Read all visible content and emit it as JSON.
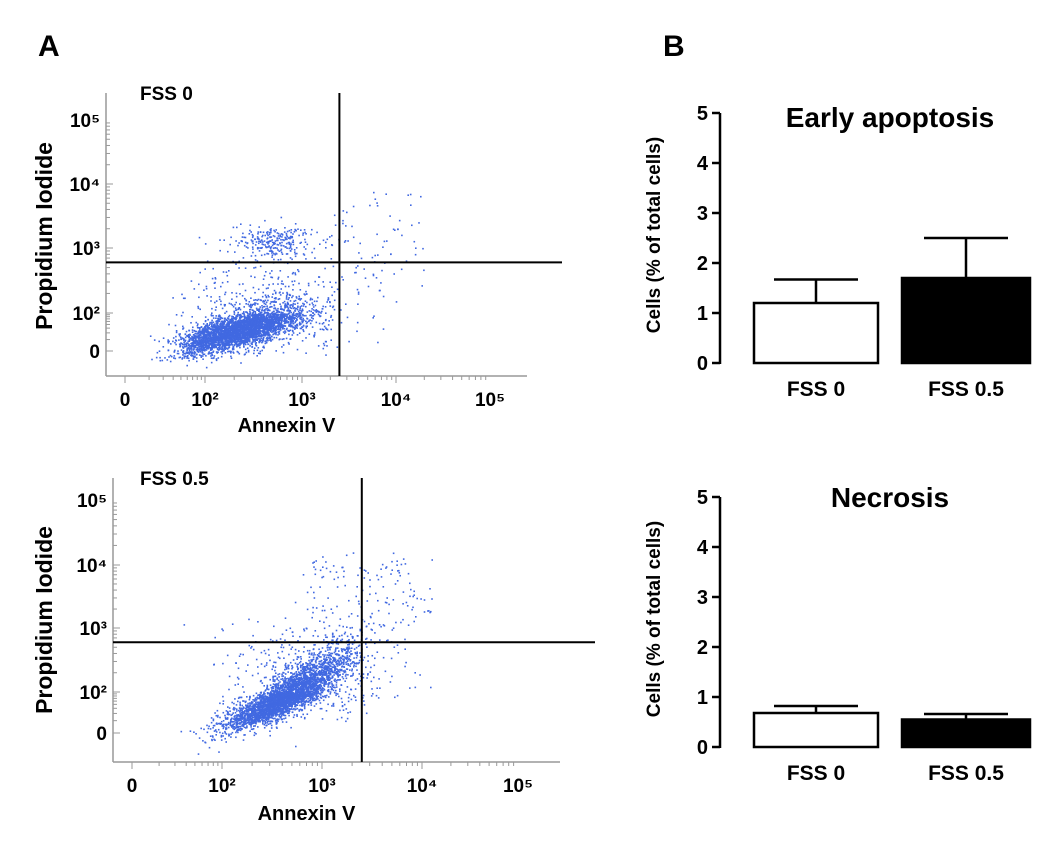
{
  "panels": {
    "a": "A",
    "b": "B"
  },
  "chart_data": [
    {
      "type": "scatter",
      "title": "FSS 0",
      "xlabel": "Annexin V",
      "ylabel": "Propidium Iodide",
      "x_scale": "biexponential (log)",
      "y_scale": "biexponential (log)",
      "x_tick_labels": [
        "0",
        "10²",
        "10³",
        "10⁴",
        "10⁵"
      ],
      "y_tick_labels": [
        "10⁵",
        "10⁴",
        "10³",
        "10²",
        "0"
      ],
      "quadrant_gate": {
        "annexin_v": 2500,
        "propidium_iodide": 600
      },
      "point_color": "#4169e1"
    },
    {
      "type": "scatter",
      "title": "FSS 0.5",
      "xlabel": "Annexin V",
      "ylabel": "Propidium Iodide",
      "x_scale": "biexponential (log)",
      "y_scale": "biexponential (log)",
      "x_tick_labels": [
        "0",
        "10²",
        "10³",
        "10⁴",
        "10⁵"
      ],
      "y_tick_labels": [
        "10⁵",
        "10⁴",
        "10³",
        "10²",
        "0"
      ],
      "quadrant_gate": {
        "annexin_v": 2500,
        "propidium_iodide": 600
      },
      "point_color": "#4169e1"
    },
    {
      "type": "bar",
      "title": "Early apoptosis",
      "ylabel": "Cells (% of total cells)",
      "categories": [
        "FSS 0",
        "FSS 0.5"
      ],
      "values": [
        1.2,
        1.7
      ],
      "error_upper": [
        0.47,
        0.8
      ],
      "ylim": [
        0,
        5
      ],
      "y_ticks": [
        "0",
        "1",
        "2",
        "3",
        "4",
        "5"
      ],
      "bar_colors": [
        "#ffffff",
        "#000000"
      ]
    },
    {
      "type": "bar",
      "title": "Necrosis",
      "ylabel": "Cells (% of total cells)",
      "categories": [
        "FSS 0",
        "FSS 0.5"
      ],
      "values": [
        0.68,
        0.55
      ],
      "error_upper": [
        0.14,
        0.11
      ],
      "ylim": [
        0,
        5
      ],
      "y_ticks": [
        "0",
        "1",
        "2",
        "3",
        "4",
        "5"
      ],
      "bar_colors": [
        "#ffffff",
        "#000000"
      ]
    }
  ]
}
